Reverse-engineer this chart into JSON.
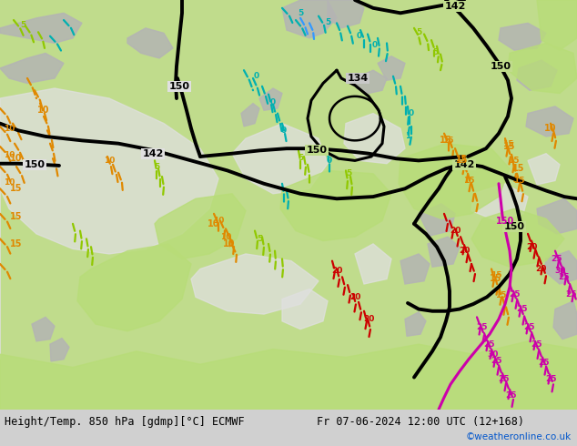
{
  "title_left": "Height/Temp. 850 hPa [gdmp][°C] ECMWF",
  "title_right": "Fr 07-06-2024 12:00 UTC (12+168)",
  "credit": "©weatheronline.co.uk",
  "bg_green_light": "#c8e896",
  "bg_green_main": "#b0d870",
  "bg_gray_land": "#b8b8b8",
  "bg_white_sea": "#e8e8e8",
  "footer_bg": "#d8d8d8",
  "credit_color": "#0055cc",
  "black_lw": 2.8,
  "temp_lw": 1.5
}
